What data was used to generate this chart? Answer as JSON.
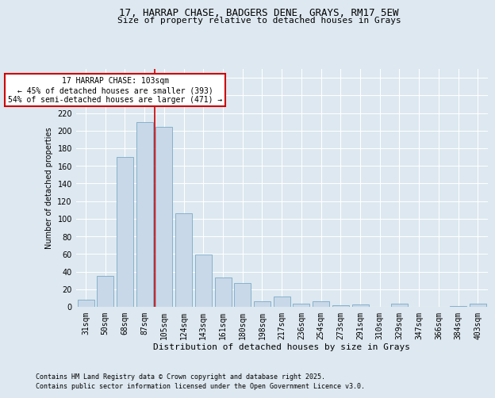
{
  "title_line1": "17, HARRAP CHASE, BADGERS DENE, GRAYS, RM17 5EW",
  "title_line2": "Size of property relative to detached houses in Grays",
  "xlabel": "Distribution of detached houses by size in Grays",
  "ylabel": "Number of detached properties",
  "categories": [
    "31sqm",
    "50sqm",
    "68sqm",
    "87sqm",
    "105sqm",
    "124sqm",
    "143sqm",
    "161sqm",
    "180sqm",
    "198sqm",
    "217sqm",
    "236sqm",
    "254sqm",
    "273sqm",
    "291sqm",
    "310sqm",
    "329sqm",
    "347sqm",
    "366sqm",
    "384sqm",
    "403sqm"
  ],
  "values": [
    8,
    35,
    170,
    210,
    204,
    106,
    59,
    33,
    27,
    6,
    12,
    4,
    6,
    2,
    3,
    0,
    4,
    0,
    0,
    1,
    4
  ],
  "bar_color": "#c8d8e8",
  "bar_edge_color": "#7aaac8",
  "vline_index": 4,
  "vline_color": "#cc0000",
  "annotation_text": "17 HARRAP CHASE: 103sqm\n← 45% of detached houses are smaller (393)\n54% of semi-detached houses are larger (471) →",
  "annotation_box_edgecolor": "#cc0000",
  "ylim": [
    0,
    270
  ],
  "yticks": [
    0,
    20,
    40,
    60,
    80,
    100,
    120,
    140,
    160,
    180,
    200,
    220,
    240,
    260
  ],
  "footer_line1": "Contains HM Land Registry data © Crown copyright and database right 2025.",
  "footer_line2": "Contains public sector information licensed under the Open Government Licence v3.0.",
  "fig_bg_color": "#dde8f0",
  "plot_bg_color": "#dde8f0",
  "grid_color": "#ffffff",
  "title1_fontsize": 9,
  "title2_fontsize": 8,
  "xlabel_fontsize": 8,
  "ylabel_fontsize": 7,
  "tick_fontsize": 7,
  "annotation_fontsize": 7,
  "footer_fontsize": 6
}
